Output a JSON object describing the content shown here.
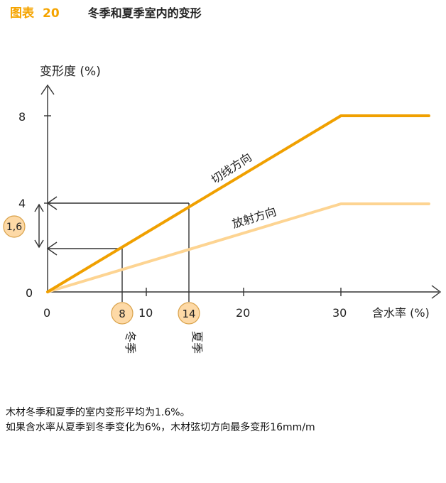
{
  "header": {
    "figure_label": "图表",
    "figure_number": "20",
    "title": "冬季和夏季室内的变形"
  },
  "colors": {
    "accent": "#F5A400",
    "tangential": "#F0A000",
    "radial": "#FDD492",
    "circle_fill": "#FDD9A6",
    "axis": "#333333"
  },
  "chart_data": {
    "type": "line",
    "title": "冬季和夏季室内的变形",
    "xlabel": "含水率 (%)",
    "ylabel": "变形度 (%)",
    "xlim": [
      0,
      30
    ],
    "ylim": [
      0,
      8
    ],
    "x_ticks": [
      "0",
      "10",
      "20",
      "30"
    ],
    "y_ticks": [
      "0",
      "4",
      "8"
    ],
    "series": [
      {
        "name": "切线方向",
        "x": [
          0,
          30,
          39
        ],
        "y": [
          0,
          8,
          8
        ]
      },
      {
        "name": "放射方向",
        "x": [
          0,
          30,
          39
        ],
        "y": [
          0,
          4,
          4
        ]
      }
    ],
    "annotations": {
      "winter_x": "8",
      "summer_x": "14",
      "delta_y": "1,6",
      "winter_label": "冬季",
      "summer_label": "夏季"
    }
  },
  "caption": {
    "line1": "木材冬季和夏季的室内变形平均为1.6%。",
    "line2": "如果含水率从夏季到冬季变化为6%，木材弦切方向最多变形16mm/m"
  }
}
